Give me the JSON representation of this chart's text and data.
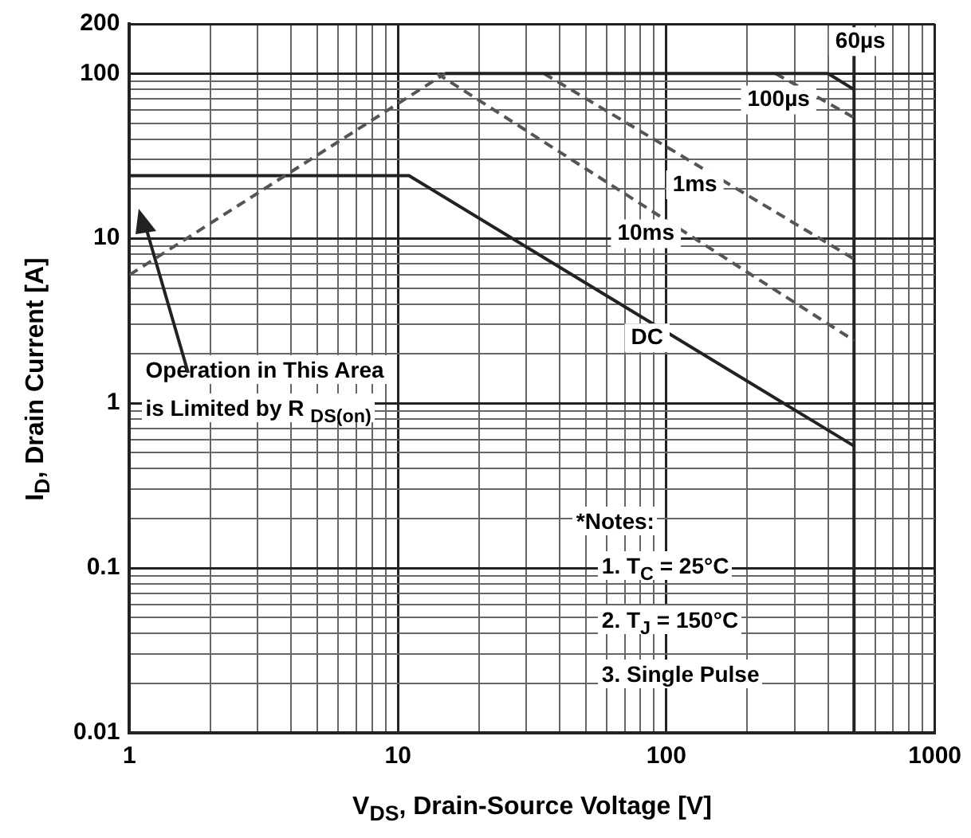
{
  "chart_data": {
    "type": "line",
    "xlabel": "V$_{DS}$, Drain-Source Voltage [V]",
    "ylabel": "I$_{D}$, Drain Current [A]",
    "log": "xy",
    "grid": true,
    "legend": false,
    "marker": "none",
    "xlim": [
      1,
      1000
    ],
    "ylim": [
      0.01,
      200
    ],
    "xticks": [
      1,
      {
        "value": 2,
        "label": null
      },
      {
        "value": 3,
        "label": null
      },
      {
        "value": 4,
        "label": null
      },
      {
        "value": 5,
        "label": null
      },
      {
        "value": 6,
        "label": null
      },
      {
        "value": 7,
        "label": null
      },
      {
        "value": 8,
        "label": null
      },
      {
        "value": 9,
        "label": null
      },
      10,
      {
        "value": 20,
        "label": null
      },
      {
        "value": 30,
        "label": null
      },
      {
        "value": 40,
        "label": null
      },
      {
        "value": 50,
        "label": null
      },
      {
        "value": 60,
        "label": null
      },
      {
        "value": 70,
        "label": null
      },
      {
        "value": 80,
        "label": null
      },
      {
        "value": 90,
        "label": null
      },
      100,
      {
        "value": 200,
        "label": null
      },
      {
        "value": 300,
        "label": null
      },
      {
        "value": 400,
        "label": null
      },
      {
        "value": 500,
        "label": null
      },
      {
        "value": 600,
        "label": null
      },
      {
        "value": 700,
        "label": null
      },
      {
        "value": 800,
        "label": null
      },
      {
        "value": 900,
        "label": null
      },
      1000
    ],
    "yticks": [
      0.01,
      {
        "value": 0.02,
        "label": null
      },
      {
        "value": 0.03,
        "label": null
      },
      {
        "value": 0.04,
        "label": null
      },
      {
        "value": 0.05,
        "label": null
      },
      {
        "value": 0.06,
        "label": null
      },
      {
        "value": 0.07,
        "label": null
      },
      {
        "value": 0.08,
        "label": null
      },
      {
        "value": 0.09,
        "label": null
      },
      0.1,
      {
        "value": 0.2,
        "label": null
      },
      {
        "value": 0.3,
        "label": null
      },
      {
        "value": 0.4,
        "label": null
      },
      {
        "value": 0.5,
        "label": null
      },
      {
        "value": 0.6,
        "label": null
      },
      {
        "value": 0.7,
        "label": null
      },
      {
        "value": 0.8,
        "label": null
      },
      {
        "value": 0.9,
        "label": null
      },
      1,
      {
        "value": 2,
        "label": null
      },
      {
        "value": 3,
        "label": null
      },
      {
        "value": 4,
        "label": null
      },
      {
        "value": 5,
        "label": null
      },
      {
        "value": 6,
        "label": null
      },
      {
        "value": 7,
        "label": null
      },
      {
        "value": 8,
        "label": null
      },
      {
        "value": 9,
        "label": null
      },
      10,
      {
        "value": 20,
        "label": null
      },
      {
        "value": 30,
        "label": null
      },
      {
        "value": 40,
        "label": null
      },
      {
        "value": 50,
        "label": null
      },
      {
        "value": 60,
        "label": null
      },
      {
        "value": 70,
        "label": null
      },
      {
        "value": 80,
        "label": null
      },
      {
        "value": 90,
        "label": null
      },
      100,
      200
    ],
    "series": [
      {
        "color": "#555555",
        "line_style": "dashed",
        "x": [
          1,
          15
        ],
        "values": [
          6,
          100
        ]
      },
      {
        "name": "60µs",
        "color": "#222222",
        "line_style": "solid",
        "x": [
          15,
          400,
          500
        ],
        "values": [
          100,
          100,
          80
        ]
      },
      {
        "name": "100µs",
        "color": "#555555",
        "line_style": "dashed",
        "x": [
          255,
          500
        ],
        "values": [
          100,
          54
        ]
      },
      {
        "name": "1ms",
        "color": "#555555",
        "line_style": "dashed",
        "x": [
          35,
          500
        ],
        "values": [
          100,
          7.5
        ]
      },
      {
        "name": "10ms",
        "color": "#555555",
        "line_style": "dashed",
        "x": [
          14,
          500
        ],
        "values": [
          100,
          2.4
        ]
      },
      {
        "name": "DC",
        "color": "#222222",
        "line_style": "solid",
        "x": [
          1,
          11,
          500
        ],
        "values": [
          24,
          24,
          0.55
        ]
      }
    ],
    "ref_lines": [
      {
        "axis": "x",
        "value": 500,
        "color": "#222222",
        "line_style": "solid"
      }
    ],
    "annotations": [
      "Operation in This Area is Limited by R $_{DS(on)}$",
      "*Notes:",
      "1. T$_{C}$ = 25°C",
      "2. T$_{J}$ = 150°C",
      "3. Single Pulse"
    ]
  }
}
